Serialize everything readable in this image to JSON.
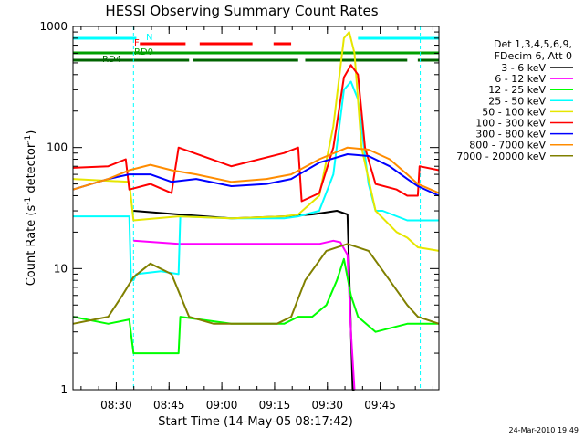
{
  "chart_data": {
    "type": "line",
    "title": "HESSI Observing Summary Count Rates",
    "xlabel": "Start Time (14-May-05 08:17:42)",
    "ylabel_main": "Count Rate (s",
    "ylabel_sup1": "-1",
    "ylabel_mid": " detector",
    "ylabel_sup2": "-1",
    "ylabel_end": ")",
    "y_scale": "log",
    "ylim": [
      1,
      1000
    ],
    "xlim_minutes": [
      0,
      104
    ],
    "x_ticks": [
      {
        "label": "08:30",
        "minute": 12.3
      },
      {
        "label": "08:45",
        "minute": 27.3
      },
      {
        "label": "09:00",
        "minute": 42.3
      },
      {
        "label": "09:15",
        "minute": 57.3
      },
      {
        "label": "09:30",
        "minute": 72.3
      },
      {
        "label": "09:45",
        "minute": 87.3
      }
    ],
    "y_ticks": [
      {
        "label": "1",
        "value": 1
      },
      {
        "label": "10",
        "value": 10
      },
      {
        "label": "100",
        "value": 100
      },
      {
        "label": "1000",
        "value": 1000
      }
    ],
    "legend": {
      "placement": "top-right",
      "header": [
        "Det 1,3,4,5,6,9,",
        "FDecim 6, Att 0"
      ],
      "entries": [
        {
          "label": "3 - 6 keV",
          "color": "#000000"
        },
        {
          "label": "6 - 12 keV",
          "color": "#ff00ff"
        },
        {
          "label": "12 - 25 keV",
          "color": "#00ff00"
        },
        {
          "label": "25 - 50 keV",
          "color": "#00ffff"
        },
        {
          "label": "50 - 100 keV",
          "color": "#e6e600"
        },
        {
          "label": "100 - 300 keV",
          "color": "#ff0000"
        },
        {
          "label": "300 - 800 keV",
          "color": "#0000ff"
        },
        {
          "label": "800 - 7000 keV",
          "color": "#ff8c00"
        },
        {
          "label": "7000 - 20000 keV",
          "color": "#808000"
        }
      ]
    },
    "flags": [
      {
        "label": "N",
        "color": "#00ffff",
        "segments": [
          [
            0,
            18
          ],
          [
            81,
            104
          ]
        ]
      },
      {
        "label": "F",
        "color": "#ff0000",
        "segments": [
          [
            19,
            32
          ],
          [
            36,
            51
          ],
          [
            57,
            62
          ]
        ]
      },
      {
        "label": "RD0",
        "color": "#00a000",
        "segments": [
          [
            0,
            104
          ]
        ]
      },
      {
        "label": "RD4",
        "color": "#006400",
        "segments": [
          [
            0,
            33
          ],
          [
            34,
            64
          ],
          [
            66,
            95
          ],
          [
            98,
            104
          ]
        ]
      }
    ],
    "vlines_minutes": [
      17.2,
      98.7
    ],
    "series": [
      {
        "color": "#000000",
        "points": [
          [
            17.2,
            30
          ],
          [
            30,
            28
          ],
          [
            45,
            26
          ],
          [
            60,
            27
          ],
          [
            68,
            28
          ],
          [
            75,
            30
          ],
          [
            78,
            28
          ],
          [
            79.5,
            1
          ],
          [
            80,
            1
          ]
        ]
      },
      {
        "color": "#ff00ff",
        "points": [
          [
            17.2,
            17
          ],
          [
            30,
            16
          ],
          [
            45,
            16
          ],
          [
            60,
            16
          ],
          [
            65,
            16
          ],
          [
            70,
            16
          ],
          [
            74,
            17
          ],
          [
            76,
            16.5
          ],
          [
            78,
            13
          ],
          [
            79,
            3
          ],
          [
            80,
            1
          ]
        ]
      },
      {
        "color": "#00ff00",
        "points": [
          [
            0,
            4
          ],
          [
            10,
            3.5
          ],
          [
            16,
            3.8
          ],
          [
            17.2,
            2
          ],
          [
            30,
            2
          ],
          [
            30.5,
            4
          ],
          [
            45,
            3.5
          ],
          [
            60,
            3.5
          ],
          [
            64,
            4
          ],
          [
            68,
            4
          ],
          [
            72,
            5
          ],
          [
            75,
            8
          ],
          [
            77,
            12
          ],
          [
            79,
            6
          ],
          [
            81,
            4
          ],
          [
            86,
            3
          ],
          [
            95,
            3.5
          ],
          [
            104,
            3.5
          ]
        ]
      },
      {
        "color": "#00ffff",
        "points": [
          [
            0,
            27
          ],
          [
            16,
            27
          ],
          [
            16.5,
            8
          ],
          [
            17.2,
            8
          ],
          [
            18,
            9
          ],
          [
            25,
            9.5
          ],
          [
            30,
            9
          ],
          [
            30.5,
            27
          ],
          [
            45,
            26
          ],
          [
            60,
            26
          ],
          [
            64,
            27
          ],
          [
            66,
            28
          ],
          [
            70,
            30
          ],
          [
            74,
            60
          ],
          [
            77,
            300
          ],
          [
            79,
            350
          ],
          [
            81,
            250
          ],
          [
            84,
            50
          ],
          [
            86,
            30
          ],
          [
            88,
            30
          ],
          [
            95,
            25
          ],
          [
            98,
            25
          ],
          [
            104,
            25
          ]
        ]
      },
      {
        "color": "#e6e600",
        "points": [
          [
            0,
            55
          ],
          [
            16,
            52
          ],
          [
            17.2,
            25
          ],
          [
            30,
            27
          ],
          [
            45,
            26
          ],
          [
            60,
            27
          ],
          [
            64,
            28
          ],
          [
            70,
            40
          ],
          [
            74,
            150
          ],
          [
            77,
            800
          ],
          [
            78.5,
            900
          ],
          [
            80,
            600
          ],
          [
            82,
            100
          ],
          [
            86,
            30
          ],
          [
            92,
            20
          ],
          [
            95,
            18
          ],
          [
            98,
            15
          ],
          [
            104,
            14
          ]
        ]
      },
      {
        "color": "#ff0000",
        "points": [
          [
            0,
            68
          ],
          [
            10,
            70
          ],
          [
            15,
            80
          ],
          [
            16,
            45
          ],
          [
            22,
            50
          ],
          [
            28,
            42
          ],
          [
            30,
            100
          ],
          [
            45,
            70
          ],
          [
            60,
            90
          ],
          [
            64,
            100
          ],
          [
            65,
            36
          ],
          [
            70,
            42
          ],
          [
            74,
            100
          ],
          [
            77,
            380
          ],
          [
            79,
            480
          ],
          [
            81,
            400
          ],
          [
            83,
            100
          ],
          [
            86,
            50
          ],
          [
            92,
            45
          ],
          [
            95,
            40
          ],
          [
            98,
            40
          ],
          [
            98.5,
            70
          ],
          [
            104,
            65
          ]
        ]
      },
      {
        "color": "#0000ff",
        "points": [
          [
            0,
            45
          ],
          [
            10,
            55
          ],
          [
            16,
            60
          ],
          [
            22,
            60
          ],
          [
            28,
            52
          ],
          [
            35,
            55
          ],
          [
            45,
            48
          ],
          [
            55,
            50
          ],
          [
            62,
            55
          ],
          [
            70,
            75
          ],
          [
            78,
            88
          ],
          [
            84,
            85
          ],
          [
            90,
            70
          ],
          [
            95,
            55
          ],
          [
            98,
            48
          ],
          [
            104,
            40
          ]
        ]
      },
      {
        "color": "#ff8c00",
        "points": [
          [
            0,
            45
          ],
          [
            10,
            55
          ],
          [
            16,
            65
          ],
          [
            22,
            72
          ],
          [
            28,
            65
          ],
          [
            35,
            60
          ],
          [
            45,
            52
          ],
          [
            55,
            55
          ],
          [
            62,
            60
          ],
          [
            70,
            80
          ],
          [
            78,
            100
          ],
          [
            84,
            96
          ],
          [
            90,
            80
          ],
          [
            95,
            60
          ],
          [
            98,
            50
          ],
          [
            104,
            42
          ]
        ]
      },
      {
        "color": "#808000",
        "points": [
          [
            0,
            3.5
          ],
          [
            10,
            4
          ],
          [
            14,
            6
          ],
          [
            17.2,
            8.5
          ],
          [
            22,
            11
          ],
          [
            28,
            9
          ],
          [
            33,
            4
          ],
          [
            40,
            3.5
          ],
          [
            50,
            3.5
          ],
          [
            58,
            3.5
          ],
          [
            62,
            4
          ],
          [
            66,
            8
          ],
          [
            72,
            14
          ],
          [
            78,
            16
          ],
          [
            84,
            14
          ],
          [
            90,
            8
          ],
          [
            95,
            5
          ],
          [
            98,
            4
          ],
          [
            104,
            3.5
          ]
        ]
      }
    ]
  },
  "footer_date": "24-Mar-2010 19:49"
}
